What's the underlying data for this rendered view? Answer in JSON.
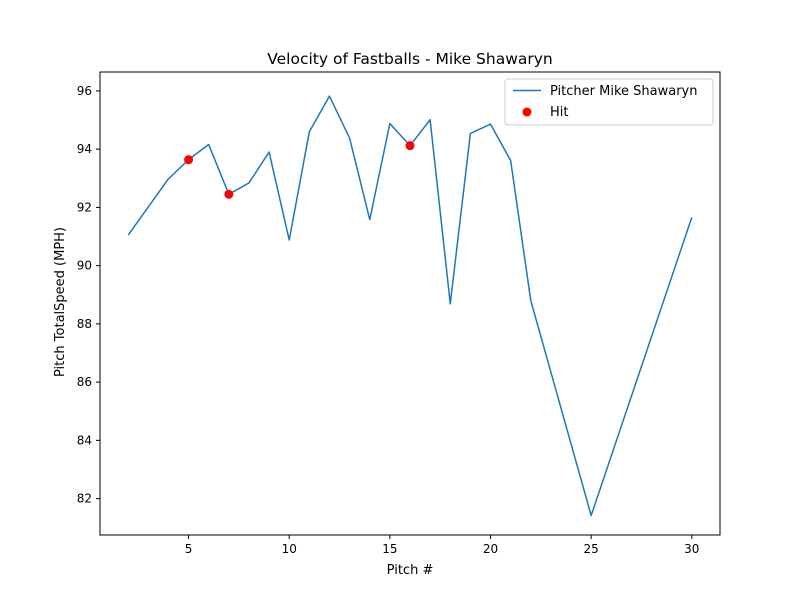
{
  "chart_data": {
    "type": "line",
    "title": "Velocity of Fastballs - Mike Shawaryn",
    "xlabel": "Pitch #",
    "ylabel": "Pitch TotalSpeed (MPH)",
    "xlim": [
      0.6,
      31.4
    ],
    "ylim": [
      80.75,
      96.65
    ],
    "x_ticks": [
      5,
      10,
      15,
      20,
      25,
      30
    ],
    "y_ticks": [
      82,
      84,
      86,
      88,
      90,
      92,
      94,
      96
    ],
    "grid": false,
    "legend_position": "top-right",
    "series": [
      {
        "name": "Pitcher Mike Shawaryn",
        "kind": "line",
        "color": "#1f77b4",
        "x": [
          2,
          4,
          5,
          6,
          7,
          8,
          9,
          10,
          11,
          12,
          13,
          14,
          15,
          16,
          17,
          18,
          19,
          20,
          21,
          22,
          25,
          30
        ],
        "y": [
          91.05,
          92.98,
          93.64,
          94.16,
          92.45,
          92.84,
          93.9,
          90.88,
          94.6,
          95.82,
          94.38,
          91.58,
          94.88,
          94.12,
          95.01,
          88.69,
          94.54,
          94.86,
          93.61,
          88.8,
          81.42,
          91.66
        ]
      },
      {
        "name": "Hit",
        "kind": "scatter",
        "color": "#ff0000",
        "x": [
          5,
          7,
          16
        ],
        "y": [
          93.64,
          92.45,
          94.12
        ]
      }
    ]
  }
}
